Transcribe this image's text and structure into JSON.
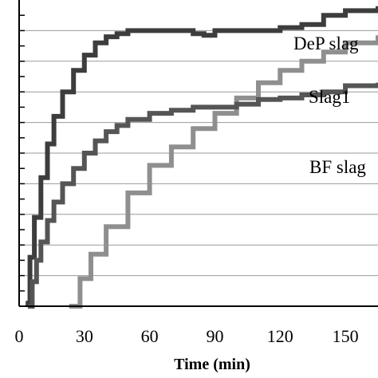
{
  "chart_data": {
    "type": "line",
    "title": "",
    "xlabel": "Time (min)",
    "ylabel": "",
    "xlim": [
      0,
      165
    ],
    "ylim": [
      0,
      10
    ],
    "xticks": [
      0,
      30,
      60,
      90,
      120,
      150
    ],
    "grid": "horizontal",
    "legend": "inline labels at right",
    "series": [
      {
        "name": "DeP slag",
        "color": "#3d3d3d",
        "x": [
          3,
          5,
          7,
          10,
          13,
          16,
          20,
          25,
          30,
          35,
          40,
          45,
          50,
          60,
          70,
          80,
          85,
          90,
          95,
          100,
          110,
          120,
          130,
          140,
          150,
          165
        ],
        "y": [
          0.1,
          1.6,
          2.9,
          4.2,
          5.3,
          6.2,
          7.0,
          7.7,
          8.2,
          8.6,
          8.8,
          8.9,
          9.0,
          9.0,
          9.0,
          8.9,
          8.85,
          9.0,
          9.0,
          9.0,
          9.0,
          9.1,
          9.2,
          9.5,
          9.65,
          9.8
        ]
      },
      {
        "name": "Slag1",
        "color": "#8f8f8f",
        "x": [
          23,
          28,
          33,
          40,
          50,
          60,
          70,
          80,
          90,
          100,
          110,
          120,
          130,
          140,
          150,
          165
        ],
        "y": [
          0.0,
          0.9,
          1.7,
          2.6,
          3.7,
          4.6,
          5.2,
          5.8,
          6.3,
          6.8,
          7.3,
          7.7,
          8.0,
          8.3,
          8.6,
          8.85
        ]
      },
      {
        "name": "BF slag",
        "color": "#555555",
        "x": [
          4,
          6,
          8,
          10,
          13,
          16,
          20,
          25,
          30,
          35,
          40,
          45,
          50,
          60,
          70,
          80,
          90,
          100,
          110,
          120,
          130,
          140,
          150,
          165
        ],
        "y": [
          0.0,
          0.8,
          1.5,
          2.1,
          2.8,
          3.4,
          4.0,
          4.5,
          5.0,
          5.4,
          5.7,
          5.9,
          6.1,
          6.3,
          6.4,
          6.5,
          6.5,
          6.6,
          6.75,
          6.8,
          6.9,
          7.0,
          7.2,
          7.3
        ]
      }
    ]
  }
}
